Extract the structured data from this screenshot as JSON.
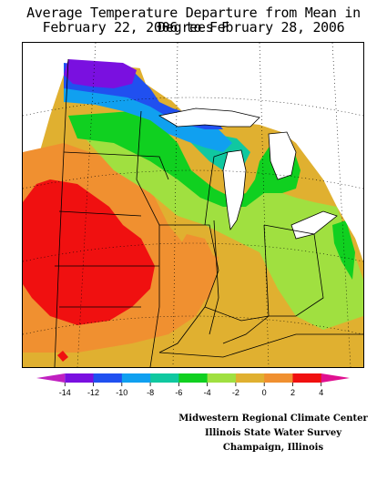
{
  "title": {
    "line1": "Average Temperature Departure from Mean in Degrees F",
    "line2": "February 22, 2006 to February 28, 2006"
  },
  "legend": {
    "ticks": [
      "-14",
      "-12",
      "-10",
      "-8",
      "-6",
      "-4",
      "-2",
      "0",
      "2",
      "4"
    ],
    "colors": [
      "#c020c0",
      "#7a10e0",
      "#2050f0",
      "#10a0f0",
      "#10c8a0",
      "#10d020",
      "#a0e040",
      "#e0b030",
      "#f09030",
      "#f01010",
      "#e01090"
    ]
  },
  "credits": {
    "line1": "Midwestern Regional Climate Center",
    "line2": "Illinois State Water Survey",
    "line3": "Champaign, Illinois"
  },
  "map": {
    "region": "Midwest United States",
    "zones": [
      {
        "name": "purple",
        "departure": "-14 to -12",
        "color": "#7a10e0"
      },
      {
        "name": "blue",
        "departure": "-12 to -10",
        "color": "#2050f0"
      },
      {
        "name": "cyan",
        "departure": "-10 to -8",
        "color": "#10a0f0"
      },
      {
        "name": "teal",
        "departure": "-8 to -6",
        "color": "#10c8a0"
      },
      {
        "name": "green",
        "departure": "-6 to -4",
        "color": "#10d020"
      },
      {
        "name": "lightgreen",
        "departure": "-4 to -2",
        "color": "#a0e040"
      },
      {
        "name": "gold",
        "departure": "-2 to 0",
        "color": "#e0b030"
      },
      {
        "name": "orange",
        "departure": "0 to 2",
        "color": "#f09030"
      },
      {
        "name": "red",
        "departure": "2 to 4",
        "color": "#f01010"
      }
    ]
  }
}
